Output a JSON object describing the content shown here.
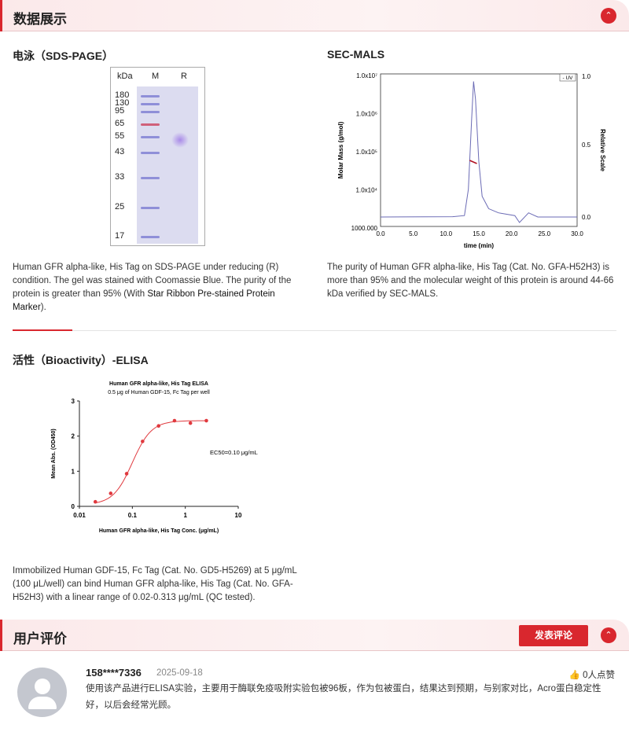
{
  "section_data": {
    "title": "数据展示"
  },
  "sds": {
    "title": "电泳（SDS-PAGE）",
    "lanes": [
      "kDa",
      "M",
      "R"
    ],
    "markers": [
      "180",
      "130",
      "95",
      "65",
      "55",
      "43",
      "33",
      "25",
      "17"
    ],
    "caption": "Human GFR alpha-like, His Tag on SDS-PAGE under reducing (R) condition. The gel was stained with Coomassie Blue. The purity of the protein is greater than 95% (With ",
    "caption_link": "Star Ribbon Pre-stained Protein Marker",
    "caption_end": ")."
  },
  "sec": {
    "title": "SEC-MALS",
    "legend": "UV",
    "ylabel": "Molar Mass (g/mol)",
    "y2label": "Relative Scale",
    "xlabel": "time (min)",
    "yticks": [
      "1.0x10⁷",
      "1.0x10⁶",
      "1.0x10⁵",
      "1.0x10⁴",
      "1000.000"
    ],
    "y2ticks": [
      "1.0",
      "0.5",
      "0.0"
    ],
    "xticks": [
      "0.0",
      "5.0",
      "10.0",
      "15.0",
      "20.0",
      "25.0",
      "30.0"
    ],
    "caption": "The purity of Human GFR alpha-like, His Tag (Cat. No. GFA-H52H3) is more than 95% and the molecular weight of this protein is around 44-66 kDa verified by SEC-MALS."
  },
  "elisa": {
    "heading": "活性（Bioactivity）-ELISA",
    "caption": "Immobilized Human GDF-15, Fc Tag (Cat. No. GD5-H5269) at 5 μg/mL (100 μL/well) can bind Human GFR alpha-like, His Tag (Cat. No. GFA-H52H3) with a linear range of 0.02-0.313 μg/mL (QC tested)."
  },
  "chart_data": {
    "type": "scatter",
    "title": "Human GFR alpha-like, His Tag ELISA",
    "subtitle": "0.5 μg of Human GDF-15, Fc Tag per well",
    "xlabel": "Human GFR alpha-like, His Tag Conc. (μg/mL)",
    "ylabel": "Mean Abs. (OD450)",
    "xscale": "log",
    "xlim": [
      0.01,
      10
    ],
    "ylim": [
      0,
      3
    ],
    "xticks": [
      "0.01",
      "0.1",
      "1",
      "10"
    ],
    "yticks": [
      "0",
      "1",
      "2",
      "3"
    ],
    "annotation": "EC50=0.10 μg/mL",
    "color": "#e0393e",
    "x": [
      0.02,
      0.039,
      0.078,
      0.156,
      0.313,
      0.625,
      1.25,
      2.5
    ],
    "y": [
      0.13,
      0.37,
      0.93,
      1.85,
      2.29,
      2.44,
      2.37,
      2.44
    ]
  },
  "reviews": {
    "title": "用户评价",
    "post_label": "发表评论",
    "items": [
      {
        "user": "158****7336",
        "date": "2025-09-18",
        "likes": "0人点赞",
        "text": "使用该产品进行ELISA实验，主要用于酶联免疫吸附实验包被96板，作为包被蛋白，结果达到预期，与别家对比，Acro蛋白稳定性好，以后会经常光顾。"
      }
    ]
  },
  "colors": {
    "accent": "#d9272e",
    "uv_line": "#6b6bb5",
    "mass_line": "#b01020"
  }
}
